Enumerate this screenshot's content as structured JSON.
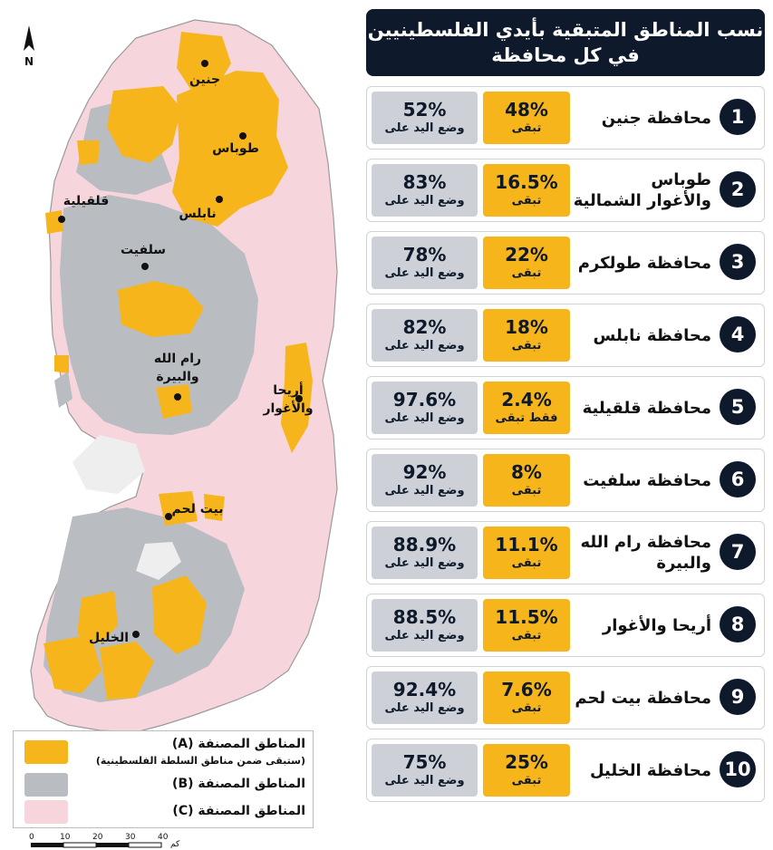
{
  "title": {
    "line1": "نسب المناطق المتبقية بأيدي الفلسطينيين",
    "line2": "في كل محافظة"
  },
  "rows": [
    {
      "num": "1",
      "name_l1": "محافظة جنين",
      "name_l2": "",
      "remain": "48%",
      "remain_label": "تبقى",
      "taken": "52%",
      "taken_label": "وضع اليد على",
      "remain_value": 48,
      "taken_value": 52
    },
    {
      "num": "2",
      "name_l1": "طوباس",
      "name_l2": "والأغوار الشمالية",
      "remain": "16.5%",
      "remain_label": "تبقى",
      "taken": "83%",
      "taken_label": "وضع اليد على",
      "remain_value": 16.5,
      "taken_value": 83
    },
    {
      "num": "3",
      "name_l1": "محافظة طولكرم",
      "name_l2": "",
      "remain": "22%",
      "remain_label": "تبقى",
      "taken": "78%",
      "taken_label": "وضع اليد على",
      "remain_value": 22,
      "taken_value": 78
    },
    {
      "num": "4",
      "name_l1": "محافظة نابلس",
      "name_l2": "",
      "remain": "18%",
      "remain_label": "تبقى",
      "taken": "82%",
      "taken_label": "وضع اليد على",
      "remain_value": 18,
      "taken_value": 82
    },
    {
      "num": "5",
      "name_l1": "محافظة قلقيلية",
      "name_l2": "",
      "remain": "2.4%",
      "remain_label": "فقط تبقى",
      "taken": "97.6%",
      "taken_label": "وضع اليد على",
      "remain_value": 2.4,
      "taken_value": 97.6
    },
    {
      "num": "6",
      "name_l1": "محافظة سلفيت",
      "name_l2": "",
      "remain": "8%",
      "remain_label": "تبقى",
      "taken": "92%",
      "taken_label": "وضع اليد على",
      "remain_value": 8,
      "taken_value": 92
    },
    {
      "num": "7",
      "name_l1": "محافظة رام الله",
      "name_l2": "والبيرة",
      "remain": "11.1%",
      "remain_label": "تبقى",
      "taken": "88.9%",
      "taken_label": "وضع اليد على",
      "remain_value": 11.1,
      "taken_value": 88.9
    },
    {
      "num": "8",
      "name_l1": "أريحا والأغوار",
      "name_l2": "",
      "remain": "11.5%",
      "remain_label": "تبقى",
      "taken": "88.5%",
      "taken_label": "وضع اليد على",
      "remain_value": 11.5,
      "taken_value": 88.5
    },
    {
      "num": "9",
      "name_l1": "محافظة بيت لحم",
      "name_l2": "",
      "remain": "7.6%",
      "remain_label": "تبقى",
      "taken": "92.4%",
      "taken_label": "وضع اليد على",
      "remain_value": 7.6,
      "taken_value": 92.4
    },
    {
      "num": "10",
      "name_l1": "محافظة الخليل",
      "name_l2": "",
      "remain": "25%",
      "remain_label": "تبقى",
      "taken": "75%",
      "taken_label": "وضع اليد على",
      "remain_value": 25,
      "taken_value": 75
    }
  ],
  "map": {
    "north_label": "N",
    "cities": {
      "jenin": "جنين",
      "tubas": "طوباس",
      "qalqilya": "قلقيلية",
      "nablus": "نابلس",
      "salfit": "سلفيت",
      "ramallah_l1": "رام الله",
      "ramallah_l2": "والبيرة",
      "jericho_l1": "أريحا",
      "jericho_l2": "والأغوار",
      "bethlehem": "بيت لحم",
      "hebron": "الخليل"
    },
    "scale": {
      "ticks": [
        "0",
        "10",
        "20",
        "30",
        "40"
      ],
      "unit": "كم"
    }
  },
  "legend": {
    "a_title": "المناطق المصنفة (A)",
    "a_sub": "(ستبقى ضمن مناطق السلطة الفلسطينية)",
    "b_title": "المناطق المصنفة (B)",
    "c_title": "المناطق المصنفة (C)"
  },
  "colors": {
    "area_a": "#f7b51c",
    "area_b": "#b9bcc1",
    "area_c": "#f6d6dc",
    "header_bg": "#0e1a2b"
  }
}
